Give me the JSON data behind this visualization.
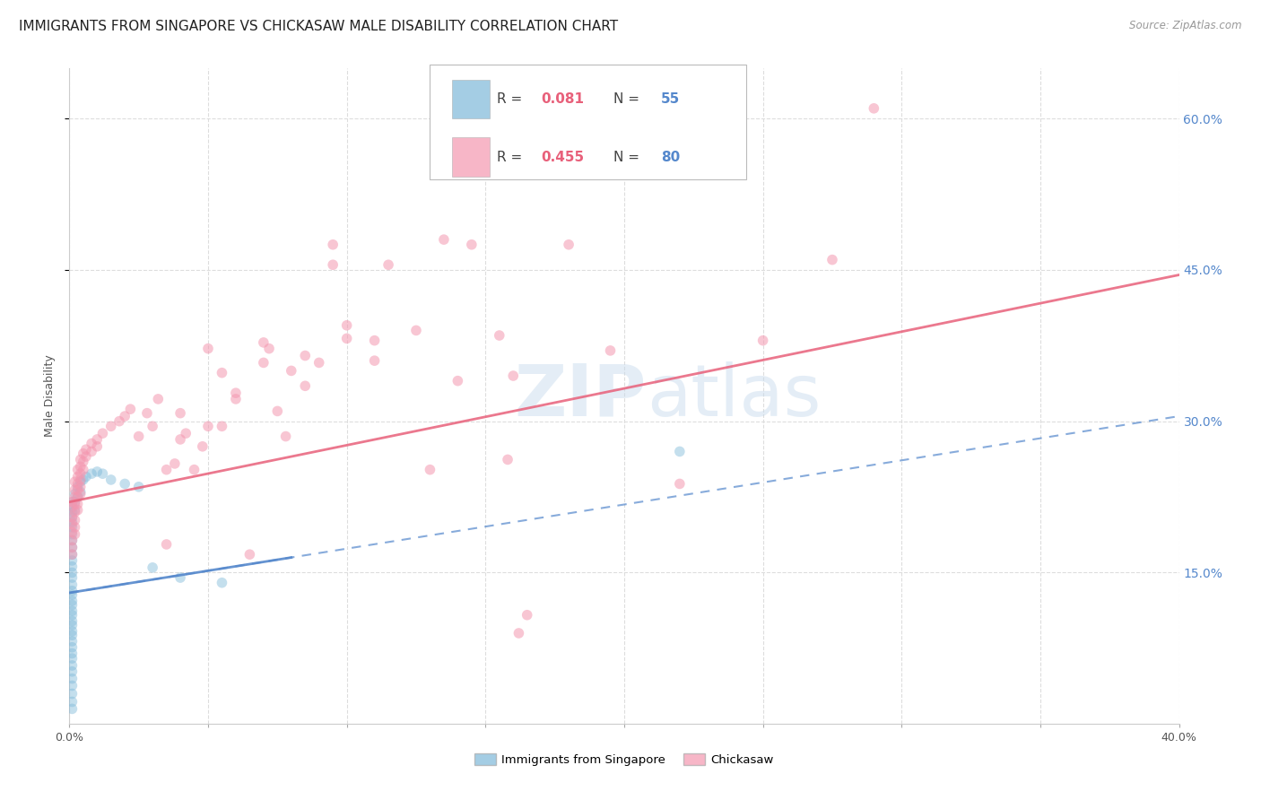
{
  "title": "IMMIGRANTS FROM SINGAPORE VS CHICKASAW MALE DISABILITY CORRELATION CHART",
  "source": "Source: ZipAtlas.com",
  "ylabel": "Male Disability",
  "xlim": [
    0.0,
    0.4
  ],
  "ylim": [
    0.0,
    0.65
  ],
  "ytick_right_labels": [
    "15.0%",
    "30.0%",
    "45.0%",
    "60.0%"
  ],
  "ytick_right_vals": [
    0.15,
    0.3,
    0.45,
    0.6
  ],
  "blue_color": "#7EB8D9",
  "pink_color": "#F497B0",
  "watermark_color": "#C5D9EC",
  "blue_line_color": "#5588CC",
  "pink_line_color": "#E8607A",
  "right_tick_color": "#5588CC",
  "blue_line": {
    "x0": 0.0,
    "y0": 0.13,
    "x1": 0.08,
    "y1": 0.155,
    "xd0": 0.0,
    "xd1": 0.4,
    "yd0": 0.13,
    "yd1": 0.305
  },
  "pink_line": {
    "x0": 0.0,
    "y0": 0.22,
    "x1": 0.4,
    "y1": 0.445
  },
  "singapore_points": [
    [
      0.001,
      0.22
    ],
    [
      0.001,
      0.215
    ],
    [
      0.001,
      0.21
    ],
    [
      0.001,
      0.205
    ],
    [
      0.001,
      0.2
    ],
    [
      0.001,
      0.195
    ],
    [
      0.001,
      0.188
    ],
    [
      0.001,
      0.182
    ],
    [
      0.001,
      0.175
    ],
    [
      0.001,
      0.168
    ],
    [
      0.001,
      0.162
    ],
    [
      0.001,
      0.156
    ],
    [
      0.001,
      0.15
    ],
    [
      0.001,
      0.145
    ],
    [
      0.001,
      0.138
    ],
    [
      0.001,
      0.132
    ],
    [
      0.001,
      0.128
    ],
    [
      0.001,
      0.122
    ],
    [
      0.001,
      0.118
    ],
    [
      0.001,
      0.112
    ],
    [
      0.001,
      0.108
    ],
    [
      0.001,
      0.102
    ],
    [
      0.001,
      0.098
    ],
    [
      0.001,
      0.092
    ],
    [
      0.001,
      0.088
    ],
    [
      0.001,
      0.082
    ],
    [
      0.001,
      0.076
    ],
    [
      0.001,
      0.07
    ],
    [
      0.001,
      0.065
    ],
    [
      0.001,
      0.058
    ],
    [
      0.001,
      0.052
    ],
    [
      0.001,
      0.045
    ],
    [
      0.001,
      0.038
    ],
    [
      0.001,
      0.03
    ],
    [
      0.001,
      0.022
    ],
    [
      0.001,
      0.015
    ],
    [
      0.002,
      0.228
    ],
    [
      0.002,
      0.22
    ],
    [
      0.002,
      0.212
    ],
    [
      0.003,
      0.235
    ],
    [
      0.003,
      0.225
    ],
    [
      0.004,
      0.24
    ],
    [
      0.004,
      0.23
    ],
    [
      0.005,
      0.242
    ],
    [
      0.006,
      0.245
    ],
    [
      0.008,
      0.248
    ],
    [
      0.01,
      0.25
    ],
    [
      0.012,
      0.248
    ],
    [
      0.015,
      0.242
    ],
    [
      0.02,
      0.238
    ],
    [
      0.025,
      0.235
    ],
    [
      0.03,
      0.155
    ],
    [
      0.04,
      0.145
    ],
    [
      0.055,
      0.14
    ],
    [
      0.22,
      0.27
    ]
  ],
  "chickasaw_points": [
    [
      0.001,
      0.22
    ],
    [
      0.001,
      0.215
    ],
    [
      0.001,
      0.205
    ],
    [
      0.001,
      0.198
    ],
    [
      0.001,
      0.19
    ],
    [
      0.001,
      0.182
    ],
    [
      0.001,
      0.175
    ],
    [
      0.001,
      0.168
    ],
    [
      0.002,
      0.24
    ],
    [
      0.002,
      0.232
    ],
    [
      0.002,
      0.225
    ],
    [
      0.002,
      0.218
    ],
    [
      0.002,
      0.21
    ],
    [
      0.002,
      0.202
    ],
    [
      0.002,
      0.195
    ],
    [
      0.002,
      0.188
    ],
    [
      0.003,
      0.252
    ],
    [
      0.003,
      0.245
    ],
    [
      0.003,
      0.238
    ],
    [
      0.003,
      0.232
    ],
    [
      0.003,
      0.225
    ],
    [
      0.003,
      0.218
    ],
    [
      0.003,
      0.212
    ],
    [
      0.004,
      0.262
    ],
    [
      0.004,
      0.255
    ],
    [
      0.004,
      0.248
    ],
    [
      0.004,
      0.242
    ],
    [
      0.004,
      0.235
    ],
    [
      0.004,
      0.228
    ],
    [
      0.005,
      0.268
    ],
    [
      0.005,
      0.26
    ],
    [
      0.005,
      0.252
    ],
    [
      0.006,
      0.272
    ],
    [
      0.006,
      0.265
    ],
    [
      0.008,
      0.278
    ],
    [
      0.008,
      0.27
    ],
    [
      0.01,
      0.282
    ],
    [
      0.01,
      0.275
    ],
    [
      0.012,
      0.288
    ],
    [
      0.015,
      0.295
    ],
    [
      0.018,
      0.3
    ],
    [
      0.02,
      0.305
    ],
    [
      0.022,
      0.312
    ],
    [
      0.025,
      0.285
    ],
    [
      0.028,
      0.308
    ],
    [
      0.03,
      0.295
    ],
    [
      0.032,
      0.322
    ],
    [
      0.035,
      0.252
    ],
    [
      0.038,
      0.258
    ],
    [
      0.04,
      0.282
    ],
    [
      0.042,
      0.288
    ],
    [
      0.045,
      0.252
    ],
    [
      0.048,
      0.275
    ],
    [
      0.05,
      0.372
    ],
    [
      0.055,
      0.348
    ],
    [
      0.06,
      0.328
    ],
    [
      0.065,
      0.168
    ],
    [
      0.07,
      0.358
    ],
    [
      0.072,
      0.372
    ],
    [
      0.078,
      0.285
    ],
    [
      0.08,
      0.35
    ],
    [
      0.09,
      0.358
    ],
    [
      0.095,
      0.455
    ],
    [
      0.1,
      0.382
    ],
    [
      0.11,
      0.38
    ],
    [
      0.115,
      0.455
    ],
    [
      0.125,
      0.39
    ],
    [
      0.135,
      0.48
    ],
    [
      0.14,
      0.34
    ],
    [
      0.145,
      0.475
    ],
    [
      0.155,
      0.385
    ],
    [
      0.158,
      0.262
    ],
    [
      0.16,
      0.345
    ],
    [
      0.162,
      0.09
    ],
    [
      0.18,
      0.475
    ],
    [
      0.195,
      0.37
    ],
    [
      0.275,
      0.46
    ],
    [
      0.29,
      0.61
    ],
    [
      0.095,
      0.475
    ],
    [
      0.05,
      0.295
    ],
    [
      0.06,
      0.322
    ],
    [
      0.075,
      0.31
    ],
    [
      0.085,
      0.335
    ],
    [
      0.04,
      0.308
    ],
    [
      0.035,
      0.178
    ],
    [
      0.13,
      0.252
    ],
    [
      0.165,
      0.108
    ],
    [
      0.22,
      0.238
    ],
    [
      0.25,
      0.38
    ],
    [
      0.1,
      0.395
    ],
    [
      0.11,
      0.36
    ],
    [
      0.085,
      0.365
    ],
    [
      0.055,
      0.295
    ],
    [
      0.07,
      0.378
    ]
  ],
  "background_color": "#FFFFFF",
  "grid_color": "#DDDDDD",
  "title_fontsize": 11,
  "axis_label_fontsize": 9,
  "tick_fontsize": 9,
  "marker_size": 70
}
